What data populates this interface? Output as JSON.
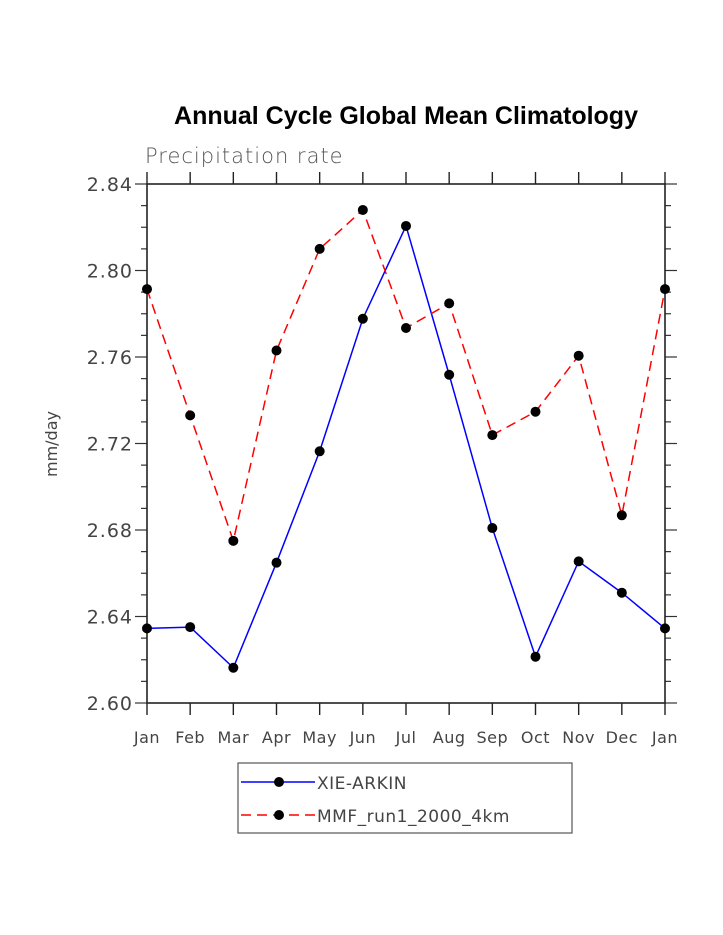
{
  "chart_data": {
    "type": "line",
    "title": "Annual Cycle Global Mean Climatology",
    "subtitle": "Precipitation rate",
    "xlabel": "",
    "ylabel": "mm/day",
    "categories": [
      "Jan",
      "Feb",
      "Mar",
      "Apr",
      "May",
      "Jun",
      "Jul",
      "Aug",
      "Sep",
      "Oct",
      "Nov",
      "Dec",
      "Jan"
    ],
    "ylim": [
      2.6,
      2.84
    ],
    "yticks": [
      "2.60",
      "2.64",
      "2.68",
      "2.72",
      "2.76",
      "2.80",
      "2.84"
    ],
    "ytick_values": [
      2.6,
      2.64,
      2.68,
      2.72,
      2.76,
      2.8,
      2.84
    ],
    "y_minor_step": 0.01,
    "grid": false,
    "legend_position": "bottom-center",
    "series": [
      {
        "name": "XIE-ARKIN",
        "color": "#0000ff",
        "line_style": "solid",
        "marker": "filled-circle",
        "values": [
          2.6345,
          2.6351,
          2.6163,
          2.6649,
          2.7164,
          2.7777,
          2.8206,
          2.7518,
          2.6809,
          2.6214,
          2.6655,
          2.651,
          2.6345
        ]
      },
      {
        "name": "MMF_run1_2000_4km",
        "color": "#ff0000",
        "line_style": "dashed",
        "marker": "filled-circle",
        "values": [
          2.7914,
          2.733,
          2.675,
          2.763,
          2.81,
          2.828,
          2.7734,
          2.7848,
          2.7239,
          2.7347,
          2.7606,
          2.6868,
          2.7914
        ]
      }
    ]
  }
}
